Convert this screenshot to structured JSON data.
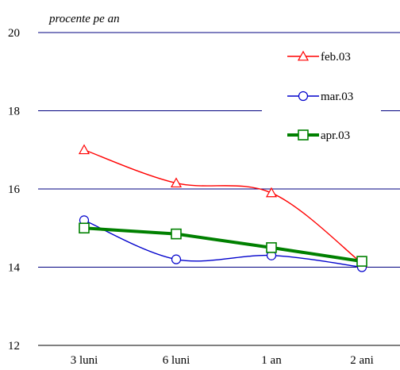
{
  "chart_data": {
    "type": "line",
    "title": "",
    "unit_label": "procente pe an",
    "xlabel": "",
    "ylabel": "",
    "categories": [
      "3 luni",
      "6 luni",
      "1 an",
      "2 ani"
    ],
    "ylim": [
      12,
      20
    ],
    "yticks": [
      12,
      14,
      16,
      18,
      20
    ],
    "grid": true,
    "legend_position": "top-right",
    "series": [
      {
        "name": "feb.03",
        "values": [
          17.0,
          16.15,
          15.9,
          14.1
        ],
        "color": "#ff0000",
        "marker": "triangle"
      },
      {
        "name": "mar.03",
        "values": [
          15.2,
          14.2,
          14.3,
          14.0
        ],
        "color": "#0000cc",
        "marker": "circle"
      },
      {
        "name": "apr.03",
        "values": [
          15.0,
          14.85,
          14.5,
          14.15
        ],
        "color": "#008000",
        "marker": "square"
      }
    ]
  }
}
